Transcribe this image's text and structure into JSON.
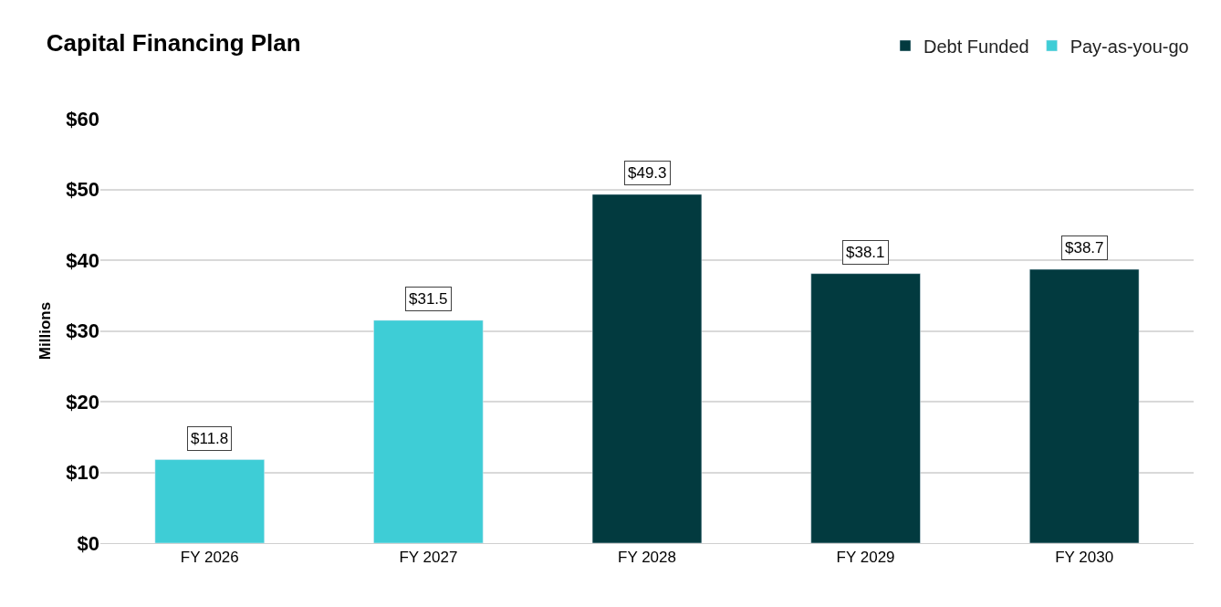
{
  "chart_data": {
    "type": "bar",
    "title": "Capital Financing Plan",
    "ylabel": "Millions",
    "categories": [
      "FY 2026",
      "FY 2027",
      "FY 2028",
      "FY 2029",
      "FY 2030"
    ],
    "series": [
      {
        "name": "Debt Funded",
        "color": "#023a3f",
        "values": [
          null,
          null,
          49.3,
          38.1,
          38.7
        ],
        "value_labels": [
          null,
          null,
          "$49.3",
          "$38.1",
          "$38.7"
        ]
      },
      {
        "name": "Pay-as-you-go",
        "color": "#3ecdd6",
        "values": [
          11.8,
          31.5,
          null,
          null,
          null
        ],
        "value_labels": [
          "$11.8",
          "$31.5",
          null,
          null,
          null
        ]
      }
    ],
    "ylim": [
      0,
      60
    ],
    "yticks": [
      {
        "value": 0,
        "label": "$0"
      },
      {
        "value": 10,
        "label": "$10"
      },
      {
        "value": 20,
        "label": "$20"
      },
      {
        "value": 30,
        "label": "$30"
      },
      {
        "value": 40,
        "label": "$40"
      },
      {
        "value": 50,
        "label": "$50"
      },
      {
        "value": 60,
        "label": "$60"
      }
    ],
    "grid": "y",
    "legend": "top right"
  }
}
